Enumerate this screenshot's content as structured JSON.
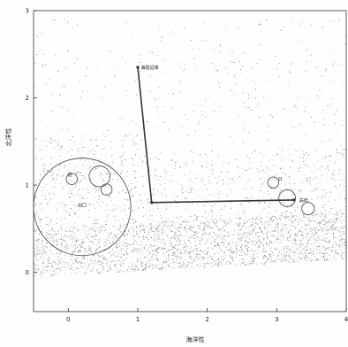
{
  "chart_data": {
    "type": "scatter",
    "title": "",
    "xlabel": "海洋性",
    "ylabel": "北洋性",
    "xlim": [
      -0.5,
      4
    ],
    "ylim": [
      -0.45,
      3
    ],
    "x_ticks": [
      "0",
      "1",
      "2",
      "3",
      "4"
    ],
    "x_tick_values": [
      0,
      1,
      2,
      3,
      4
    ],
    "y_ticks": [
      "0",
      "1",
      "2",
      "3"
    ],
    "y_tick_values": [
      0,
      1,
      2,
      3
    ],
    "grid": false,
    "legend": "none",
    "point_color": "#6a6a6a",
    "line_color": "#333333",
    "trend_line": {
      "x": [
        1.0,
        1.2,
        3.25
      ],
      "y": [
        2.35,
        0.8,
        0.83
      ]
    },
    "annotations": [
      {
        "text": "海陆沿岸",
        "x": 1.02,
        "y": 2.35
      },
      {
        "text": "岛屿",
        "x": 3.3,
        "y": 0.83
      }
    ],
    "circles": [
      {
        "cx": 0.2,
        "cy": 0.75,
        "r": 0.7
      },
      {
        "cx": 0.45,
        "cy": 1.1,
        "r": 0.15
      },
      {
        "cx": 0.05,
        "cy": 1.07,
        "r": 0.08
      },
      {
        "cx": 0.55,
        "cy": 0.95,
        "r": 0.08
      },
      {
        "cx": 2.95,
        "cy": 1.03,
        "r": 0.08
      },
      {
        "cx": 3.15,
        "cy": 0.85,
        "r": 0.12
      },
      {
        "cx": 3.45,
        "cy": 0.73,
        "r": 0.09
      }
    ],
    "cluster_labels": [
      {
        "text": "出口",
        "x": 0.2,
        "y": 0.75
      },
      {
        "text": "沿",
        "x": 0.02,
        "y": 1.1
      },
      {
        "text": "O",
        "x": 3.05,
        "y": 1.05
      }
    ]
  }
}
